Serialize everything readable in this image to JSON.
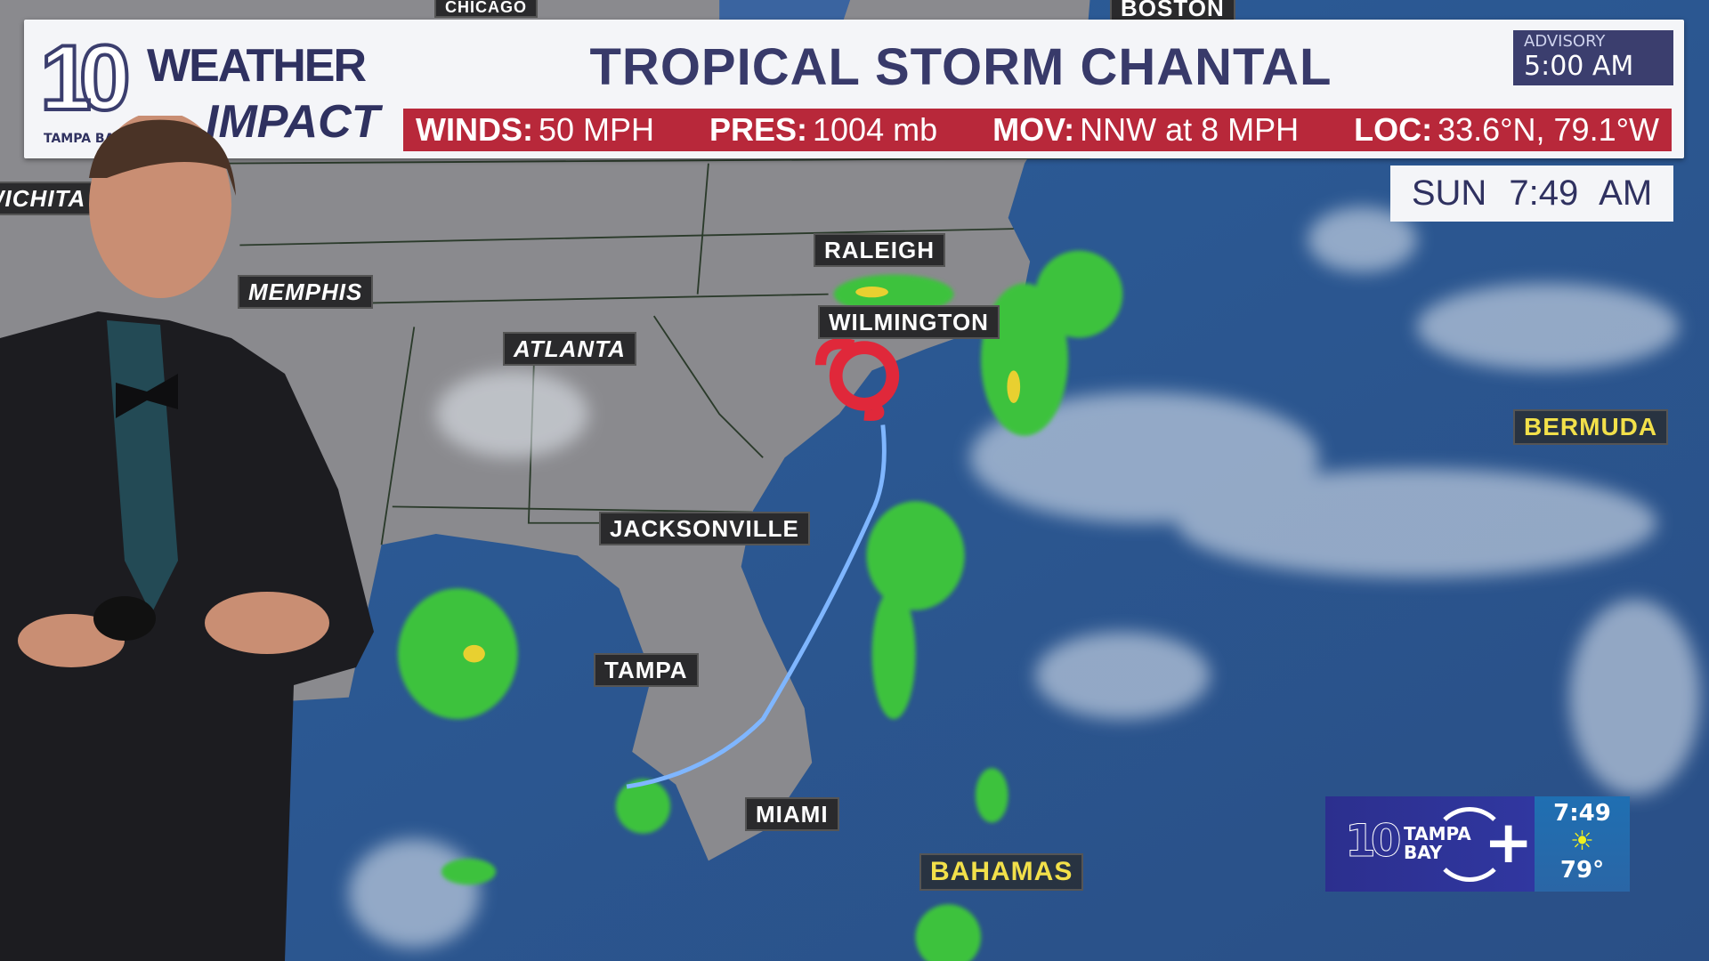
{
  "banner": {
    "logo": {
      "number": "10",
      "line1": "WEATHER",
      "line2": "IMPACT",
      "station": "TAMPA BAY"
    },
    "title": "TROPICAL STORM CHANTAL",
    "advisory": {
      "label": "ADVISORY",
      "time": "5:00 AM"
    },
    "stats": [
      {
        "label": "WINDS:",
        "value": "50 MPH"
      },
      {
        "label": "PRES:",
        "value": "1004 mb"
      },
      {
        "label": "MOV:",
        "value": "NNW at 8 MPH"
      },
      {
        "label": "LOC:",
        "value": "33.6°N, 79.1°W"
      }
    ]
  },
  "clock": "SUN 7:49 AM",
  "cities": {
    "boston": "BOSTON",
    "chicago": "CHICAGO",
    "wichita": "WICHITA",
    "memphis": "MEMPHIS",
    "raleigh": "RALEIGH",
    "atlanta": "ATLANTA",
    "wilmington": "WILMINGTON",
    "jacksonville": "JACKSONVILLE",
    "tampa": "TAMPA",
    "miami": "MIAMI",
    "bahamas": "BAHAMAS",
    "bermuda": "BERMUDA"
  },
  "bug": {
    "number": "10",
    "brand": "TAMPA BAY",
    "plus": "+",
    "time": "7:49",
    "icon": "sun-icon",
    "temp": "79°"
  },
  "colors": {
    "navy": "#3b3e6e",
    "red": "#b8283a",
    "storm": "#e0283a"
  }
}
